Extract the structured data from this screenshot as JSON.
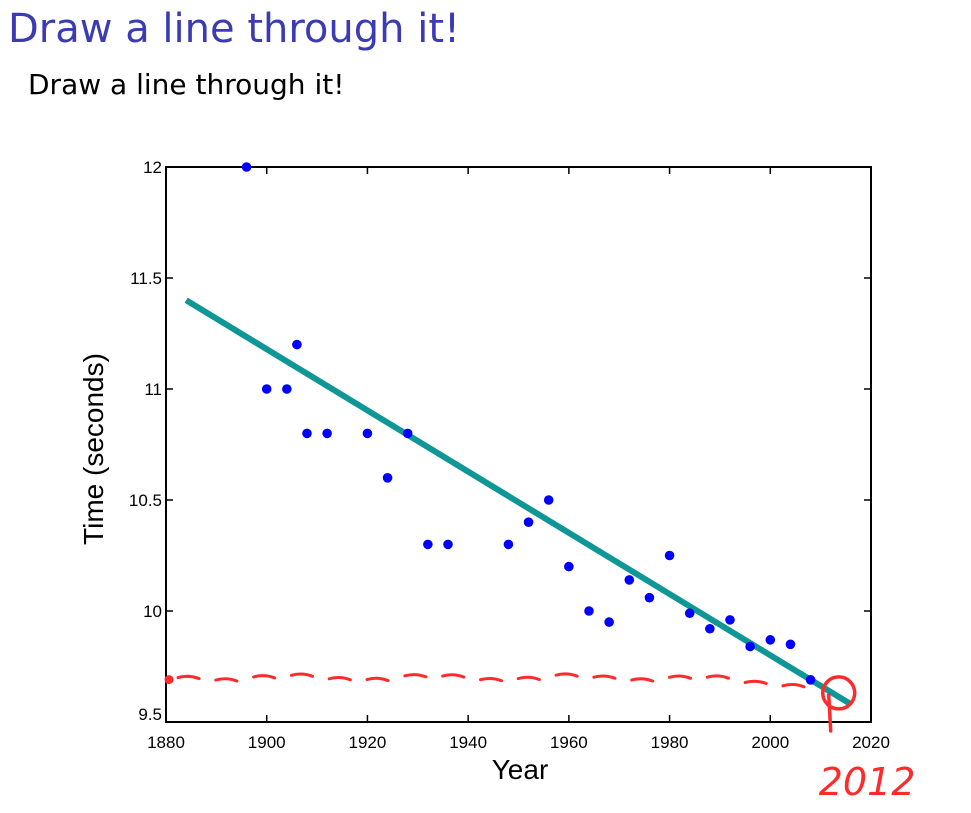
{
  "slide": {
    "title": "Draw a line through it!",
    "subtitle": "Draw a line through it!"
  },
  "colors": {
    "title": "#3b3bb3",
    "points": "#0000ff",
    "fit_line": "#0f9696",
    "annotation": "#ff2a2a"
  },
  "chart_data": {
    "type": "scatter",
    "title": "",
    "xlabel": "Year",
    "ylabel": "Time (seconds)",
    "xlim": [
      1880,
      2020
    ],
    "ylim": [
      9.5,
      12
    ],
    "xticks": [
      1880,
      1900,
      1920,
      1940,
      1960,
      1980,
      2000,
      2020
    ],
    "yticks": [
      9.5,
      10,
      10.5,
      11,
      11.5,
      12
    ],
    "xtick_labels": [
      "1880",
      "1900",
      "1920",
      "1940",
      "1960",
      "1980",
      "2000",
      "2020"
    ],
    "ytick_labels": [
      "9.5",
      "10",
      "10.5",
      "11",
      "11.5",
      "12"
    ],
    "grid": false,
    "series": [
      {
        "x": [
          1896,
          1900,
          1904,
          1906,
          1908,
          1912,
          1920,
          1924,
          1928,
          1932,
          1936,
          1948,
          1952,
          1956,
          1960,
          1964,
          1968,
          1972,
          1976,
          1980,
          1984,
          1988,
          1992,
          1996,
          2000,
          2004,
          2008
        ],
        "y": [
          12.0,
          11.0,
          11.0,
          11.2,
          10.8,
          10.8,
          10.8,
          10.6,
          10.8,
          10.3,
          10.3,
          10.3,
          10.4,
          10.5,
          10.2,
          10.0,
          9.95,
          10.14,
          10.06,
          10.25,
          9.99,
          9.92,
          9.96,
          9.84,
          9.87,
          9.85,
          9.69
        ]
      }
    ],
    "fit_line": {
      "x": [
        1884,
        2016
      ],
      "y": [
        11.4,
        9.58
      ]
    },
    "annotations": {
      "dashed_level_y": 9.7,
      "dashed_x": [
        1880,
        2012
      ],
      "circle_point": {
        "x": 2012,
        "y": 9.64
      },
      "label": "2012"
    }
  }
}
